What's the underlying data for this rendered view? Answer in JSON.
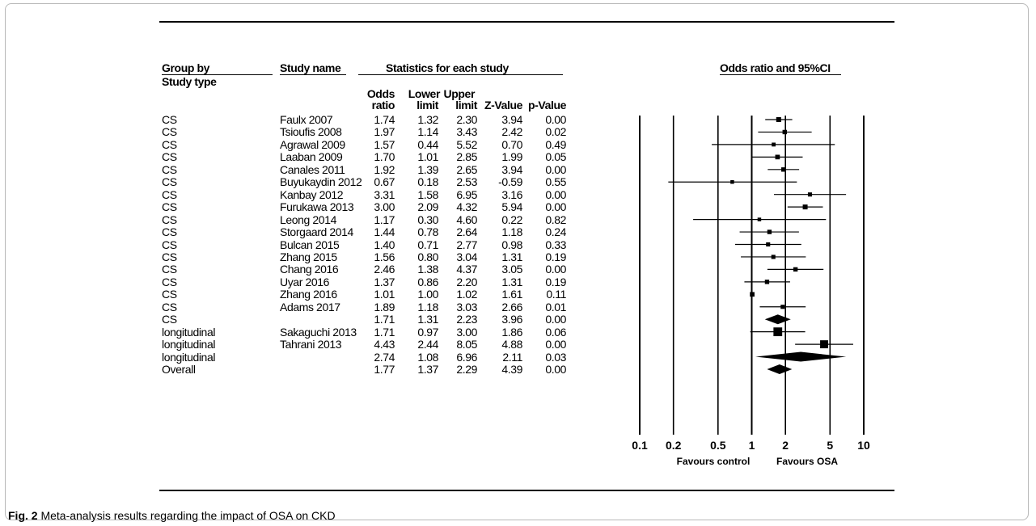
{
  "caption": {
    "label": "Fig. 2",
    "text": "Meta-analysis results regarding the impact of OSA on CKD"
  },
  "header": {
    "group_by": "Group by",
    "study_type": "Study type",
    "study_name": "Study name",
    "statistics": "Statistics for each study",
    "plot_title": "Odds ratio and 95%CI",
    "odds_ratio": [
      "Odds",
      "ratio"
    ],
    "lower_limit": [
      "Lower",
      "limit"
    ],
    "upper_limit": [
      "Upper",
      "limit"
    ],
    "z_value": "Z-Value",
    "p_value": "p-Value"
  },
  "chart_data": {
    "type": "forest",
    "title": "Odds ratio and 95%CI",
    "xscale": "log",
    "xlim": [
      0.1,
      10
    ],
    "xticks": [
      "0.1",
      "0.2",
      "0.5",
      "1",
      "2",
      "5",
      "10"
    ],
    "xlabel_left": "Favours control",
    "xlabel_right": "Favours OSA",
    "rows": [
      {
        "group": "CS",
        "study": "Faulx 2007",
        "or": "1.74",
        "lower": "1.32",
        "upper": "2.30",
        "z": "3.94",
        "p": "0.00",
        "kind": "study",
        "weight": 1
      },
      {
        "group": "CS",
        "study": "Tsioufis 2008",
        "or": "1.97",
        "lower": "1.14",
        "upper": "3.43",
        "z": "2.42",
        "p": "0.02",
        "kind": "study",
        "weight": 0.8
      },
      {
        "group": "CS",
        "study": "Agrawal 2009",
        "or": "1.57",
        "lower": "0.44",
        "upper": "5.52",
        "z": "0.70",
        "p": "0.49",
        "kind": "study",
        "weight": 0.6
      },
      {
        "group": "CS",
        "study": "Laaban 2009",
        "or": "1.70",
        "lower": "1.01",
        "upper": "2.85",
        "z": "1.99",
        "p": "0.05",
        "kind": "study",
        "weight": 0.9
      },
      {
        "group": "CS",
        "study": "Canales 2011",
        "or": "1.92",
        "lower": "1.39",
        "upper": "2.65",
        "z": "3.94",
        "p": "0.00",
        "kind": "study",
        "weight": 0.8
      },
      {
        "group": "CS",
        "study": "Buyukaydin 2012",
        "or": "0.67",
        "lower": "0.18",
        "upper": "2.53",
        "z": "-0.59",
        "p": "0.55",
        "kind": "study",
        "weight": 0.5
      },
      {
        "group": "CS",
        "study": "Kanbay 2012",
        "or": "3.31",
        "lower": "1.58",
        "upper": "6.95",
        "z": "3.16",
        "p": "0.00",
        "kind": "study",
        "weight": 0.7
      },
      {
        "group": "CS",
        "study": "Furukawa 2013",
        "or": "3.00",
        "lower": "2.09",
        "upper": "4.32",
        "z": "5.94",
        "p": "0.00",
        "kind": "study",
        "weight": 1
      },
      {
        "group": "CS",
        "study": "Leong 2014",
        "or": "1.17",
        "lower": "0.30",
        "upper": "4.60",
        "z": "0.22",
        "p": "0.82",
        "kind": "study",
        "weight": 0.5
      },
      {
        "group": "CS",
        "study": "Storgaard 2014",
        "or": "1.44",
        "lower": "0.78",
        "upper": "2.64",
        "z": "1.18",
        "p": "0.24",
        "kind": "study",
        "weight": 0.8
      },
      {
        "group": "CS",
        "study": "Bulcan 2015",
        "or": "1.40",
        "lower": "0.71",
        "upper": "2.77",
        "z": "0.98",
        "p": "0.33",
        "kind": "study",
        "weight": 0.7
      },
      {
        "group": "CS",
        "study": "Zhang 2015",
        "or": "1.56",
        "lower": "0.80",
        "upper": "3.04",
        "z": "1.31",
        "p": "0.19",
        "kind": "study",
        "weight": 0.7
      },
      {
        "group": "CS",
        "study": "Chang 2016",
        "or": "2.46",
        "lower": "1.38",
        "upper": "4.37",
        "z": "3.05",
        "p": "0.00",
        "kind": "study",
        "weight": 0.8
      },
      {
        "group": "CS",
        "study": "Uyar 2016",
        "or": "1.37",
        "lower": "0.86",
        "upper": "2.20",
        "z": "1.31",
        "p": "0.19",
        "kind": "study",
        "weight": 0.8
      },
      {
        "group": "CS",
        "study": "Zhang 2016",
        "or": "1.01",
        "lower": "1.00",
        "upper": "1.02",
        "z": "1.61",
        "p": "0.11",
        "kind": "study",
        "weight": 0.9
      },
      {
        "group": "CS",
        "study": "Adams 2017",
        "or": "1.89",
        "lower": "1.18",
        "upper": "3.03",
        "z": "2.66",
        "p": "0.01",
        "kind": "study",
        "weight": 0.7
      },
      {
        "group": "CS",
        "study": "",
        "or": "1.71",
        "lower": "1.31",
        "upper": "2.23",
        "z": "3.96",
        "p": "0.00",
        "kind": "summary",
        "weight": 1
      },
      {
        "group": "longitudinal",
        "study": "Sakaguchi 2013",
        "or": "1.71",
        "lower": "0.97",
        "upper": "3.00",
        "z": "1.86",
        "p": "0.06",
        "kind": "study",
        "weight": 2.6
      },
      {
        "group": "longitudinal",
        "study": "Tahrani 2013",
        "or": "4.43",
        "lower": "2.44",
        "upper": "8.05",
        "z": "4.88",
        "p": "0.00",
        "kind": "study",
        "weight": 2.3
      },
      {
        "group": "longitudinal",
        "study": "",
        "or": "2.74",
        "lower": "1.08",
        "upper": "6.96",
        "z": "2.11",
        "p": "0.03",
        "kind": "summary",
        "weight": 1
      },
      {
        "group": "Overall",
        "study": "",
        "or": "1.77",
        "lower": "1.37",
        "upper": "2.29",
        "z": "4.39",
        "p": "0.00",
        "kind": "summary",
        "weight": 1
      }
    ]
  }
}
